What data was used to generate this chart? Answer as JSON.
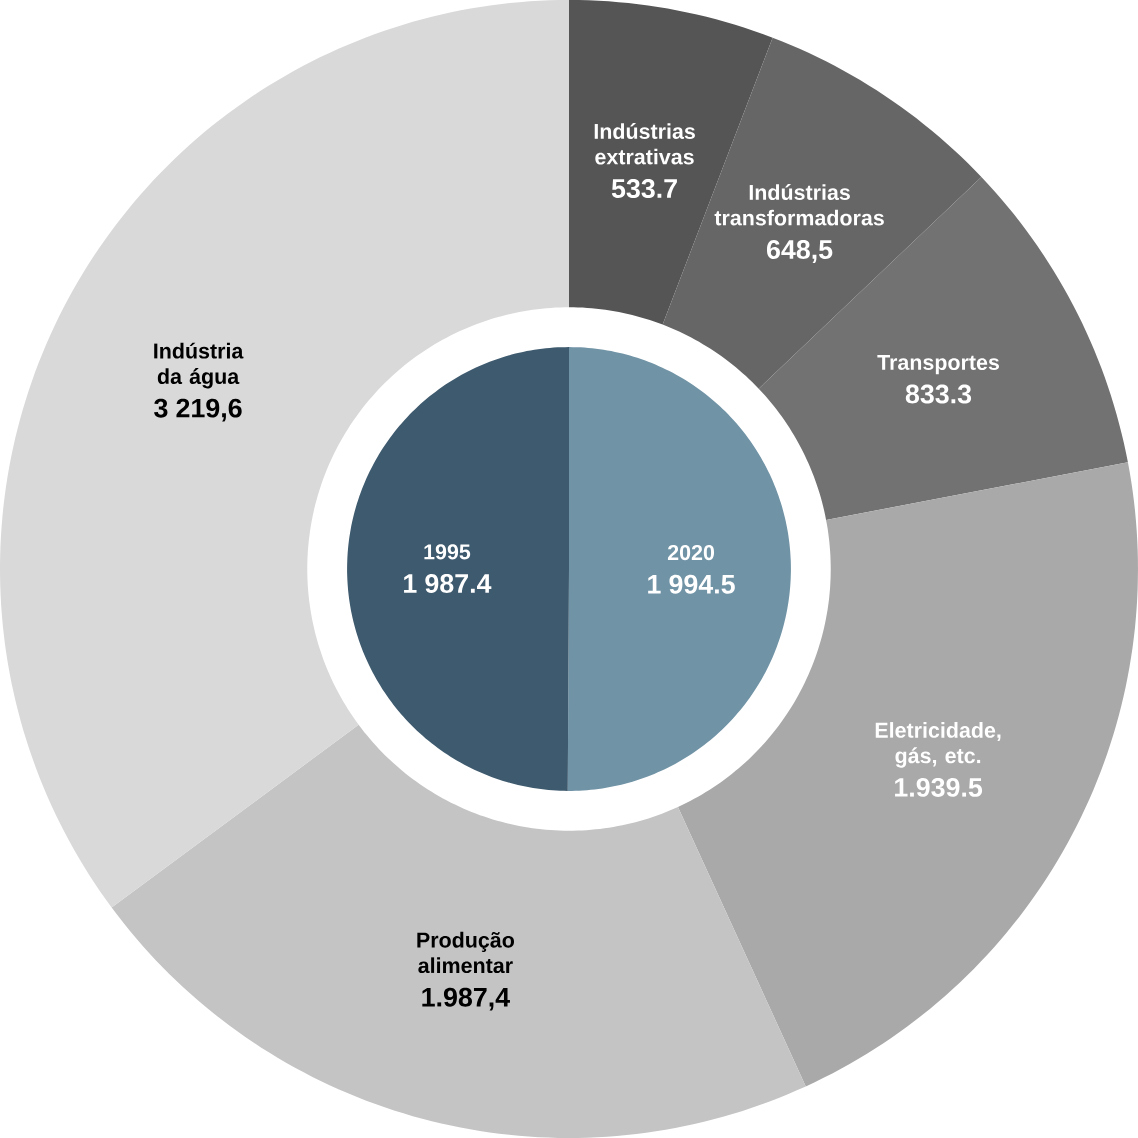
{
  "chart_data": [
    {
      "type": "donut",
      "categories": [
        "Indústrias extrativas",
        "Indústrias transformadoras",
        "Transportes",
        "Eletricidade, gás, etc.",
        "Produção alimentar",
        "Indústria da água"
      ],
      "values": [
        533.7,
        648.5,
        833.3,
        1939.5,
        1987.4,
        3219.6
      ],
      "colors": [
        "#555555",
        "#666666",
        "#727272",
        "#a9a9a9",
        "#c4c4c4",
        "#d9d9d9"
      ],
      "value_labels": [
        "533.7",
        "648,5",
        "833.3",
        "1.939.5",
        "1.987,4",
        "3 219,6"
      ]
    },
    {
      "type": "pie",
      "categories": [
        "2020",
        "1995"
      ],
      "values": [
        1994.5,
        1987.4
      ],
      "colors": [
        "#7093a6",
        "#3e5a6e"
      ],
      "value_labels": [
        "1 994.5",
        "1 987.4"
      ]
    }
  ]
}
